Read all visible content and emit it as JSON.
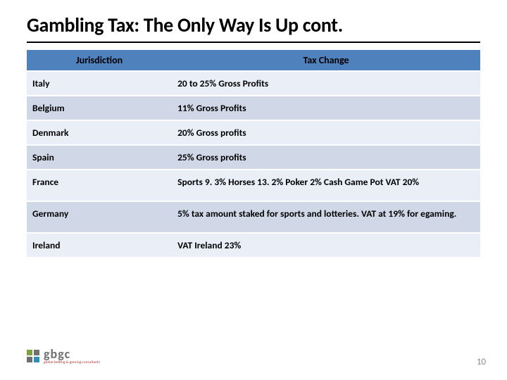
{
  "title": "Gambling Tax: The Only Way Is Up cont.",
  "table": {
    "header_bg": "#4f81bd",
    "row_alt_colors": [
      "#e9eef7",
      "#d0d8e8"
    ],
    "columns": [
      {
        "key": "jurisdiction",
        "label": "Jurisdiction",
        "width_pct": 32
      },
      {
        "key": "tax_change",
        "label": "Tax Change",
        "width_pct": 68
      }
    ],
    "rows": [
      {
        "jurisdiction": "Italy",
        "tax_change": "20 to 25% Gross Profits"
      },
      {
        "jurisdiction": "Belgium",
        "tax_change": "11% Gross Profits"
      },
      {
        "jurisdiction": "Denmark",
        "tax_change": "20% Gross profits"
      },
      {
        "jurisdiction": "Spain",
        "tax_change": "25% Gross profits"
      },
      {
        "jurisdiction": "France",
        "tax_change": "Sports 9. 3% Horses 13. 2% Poker 2% Cash Game Pot VAT 20%",
        "tall": true
      },
      {
        "jurisdiction": "Germany",
        "tax_change": "5% tax amount staked for sports and lotteries. VAT at 19% for egaming.",
        "tall": true
      },
      {
        "jurisdiction": " Ireland",
        "tax_change": "VAT Ireland 23%"
      }
    ]
  },
  "logo": {
    "square_colors": [
      "#7aa23c",
      "#6f6f6f",
      "#6f6f6f",
      "#2e8fb0"
    ],
    "text_main": "gbgc",
    "text_main_color": "#6f6f6f",
    "text_sub": "global betting & gaming consultants",
    "text_sub_color": "#b33a3a"
  },
  "page_number": "10",
  "page_number_color": "#8a8a8a"
}
